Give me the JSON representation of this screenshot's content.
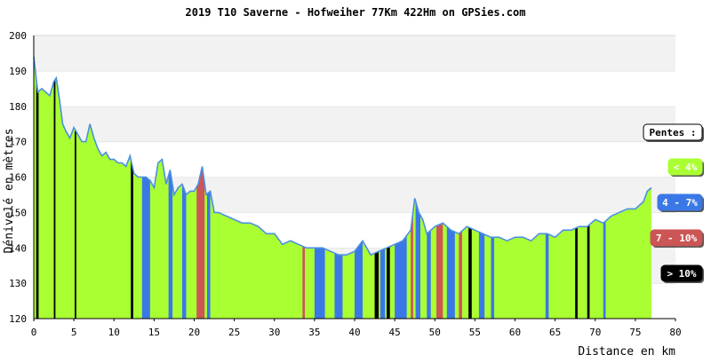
{
  "chart_data": {
    "type": "area",
    "title": "2019 T10 Saverne - Hofweiher 77Km 422Hm on GPSies.com",
    "xlabel": "Distance en km",
    "ylabel": "Dénivelé en mètres",
    "xlim": [
      0,
      80
    ],
    "ylim": [
      120,
      200
    ],
    "x_ticks": [
      "0",
      "5",
      "10",
      "15",
      "20",
      "25",
      "30",
      "35",
      "40",
      "45",
      "50",
      "55",
      "60",
      "65",
      "70",
      "75",
      "80"
    ],
    "y_ticks": [
      "120",
      "130",
      "140",
      "150",
      "160",
      "170",
      "180",
      "190",
      "200"
    ],
    "grid": true,
    "legend_placement": "right",
    "series": [
      {
        "name": "Dénivelé",
        "x": [
          0,
          0.2,
          0.5,
          1,
          1.5,
          2,
          2.5,
          2.8,
          3.2,
          3.6,
          4,
          4.5,
          5,
          5.5,
          6,
          6.5,
          7,
          7.5,
          8,
          8.5,
          9,
          9.5,
          10,
          10.5,
          11,
          11.5,
          12,
          12.5,
          13,
          13.5,
          14,
          14.5,
          15,
          15.5,
          16,
          16.5,
          17,
          17.5,
          18,
          18.5,
          19,
          19.5,
          20,
          20.5,
          21,
          21.5,
          22,
          22.5,
          23,
          24,
          25,
          26,
          27,
          28,
          29,
          30,
          31,
          32,
          33,
          34,
          35,
          36,
          37,
          38,
          39,
          40,
          41,
          42,
          43,
          44,
          45,
          46,
          47,
          47.5,
          48,
          48.5,
          49,
          50,
          51,
          52,
          53,
          54,
          55,
          56,
          57,
          58,
          59,
          60,
          61,
          62,
          63,
          64,
          65,
          66,
          67,
          68,
          69,
          70,
          71,
          72,
          73,
          74,
          75,
          76,
          76.5,
          77
        ],
        "values": [
          194,
          190,
          184,
          185,
          184,
          183,
          187,
          188,
          182,
          175,
          173,
          171,
          174,
          172,
          170,
          170,
          175,
          171,
          168,
          166,
          167,
          165,
          165,
          164,
          164,
          163,
          166,
          161,
          160,
          160,
          160,
          159,
          157,
          164,
          165,
          158,
          162,
          155,
          157,
          158,
          155,
          156,
          156,
          158,
          163,
          155,
          156,
          150,
          150,
          149,
          148,
          147,
          147,
          146,
          144,
          144,
          141,
          142,
          141,
          140,
          140,
          140,
          139,
          138,
          138,
          139,
          142,
          138,
          139,
          140,
          141,
          142,
          145,
          154,
          150,
          148,
          144,
          146,
          147,
          145,
          144,
          146,
          145,
          144,
          143,
          143,
          142,
          143,
          143,
          142,
          144,
          144,
          143,
          145,
          145,
          146,
          146,
          148,
          147,
          149,
          150,
          151,
          151,
          153,
          156,
          157
        ]
      }
    ],
    "legend": {
      "title": "Pentes :",
      "items": [
        {
          "label": "< 4%",
          "color": "#aaff33"
        },
        {
          "label": "4 - 7%",
          "color": "#3b78e7"
        },
        {
          "label": "7 - 10%",
          "color": "#cc5555"
        },
        {
          "label": "> 10%",
          "color": "#000000"
        }
      ]
    },
    "slope_segments": [
      {
        "x": [
          0.3,
          0.6
        ],
        "class": "> 10%"
      },
      {
        "x": [
          2.5,
          2.7
        ],
        "class": "> 10%"
      },
      {
        "x": [
          5.1,
          5.3
        ],
        "class": "> 10%"
      },
      {
        "x": [
          12.1,
          12.4
        ],
        "class": "> 10%"
      },
      {
        "x": [
          13.5,
          14.5
        ],
        "class": "4 - 7%"
      },
      {
        "x": [
          16.8,
          17.3
        ],
        "class": "4 - 7%"
      },
      {
        "x": [
          18.5,
          19
        ],
        "class": "4 - 7%"
      },
      {
        "x": [
          20.3,
          21.3
        ],
        "class": "7 - 10%"
      },
      {
        "x": [
          21.6,
          22
        ],
        "class": "4 - 7%"
      },
      {
        "x": [
          33.5,
          33.8
        ],
        "class": "7 - 10%"
      },
      {
        "x": [
          35,
          36.3
        ],
        "class": "4 - 7%"
      },
      {
        "x": [
          37.5,
          38.5
        ],
        "class": "4 - 7%"
      },
      {
        "x": [
          40,
          41
        ],
        "class": "4 - 7%"
      },
      {
        "x": [
          42.5,
          43
        ],
        "class": "> 10%"
      },
      {
        "x": [
          43.2,
          43.8
        ],
        "class": "4 - 7%"
      },
      {
        "x": [
          44,
          44.4
        ],
        "class": "> 10%"
      },
      {
        "x": [
          45,
          46.5
        ],
        "class": "4 - 7%"
      },
      {
        "x": [
          47,
          47.3
        ],
        "class": "7 - 10%"
      },
      {
        "x": [
          47.6,
          48.2
        ],
        "class": "4 - 7%"
      },
      {
        "x": [
          49,
          49.5
        ],
        "class": "4 - 7%"
      },
      {
        "x": [
          50.2,
          51
        ],
        "class": "7 - 10%"
      },
      {
        "x": [
          51.5,
          52.5
        ],
        "class": "4 - 7%"
      },
      {
        "x": [
          53,
          53.4
        ],
        "class": "7 - 10%"
      },
      {
        "x": [
          54.2,
          54.6
        ],
        "class": "> 10%"
      },
      {
        "x": [
          55.5,
          56.2
        ],
        "class": "4 - 7%"
      },
      {
        "x": [
          57,
          57.4
        ],
        "class": "4 - 7%"
      },
      {
        "x": [
          63.8,
          64.2
        ],
        "class": "4 - 7%"
      },
      {
        "x": [
          67.5,
          67.8
        ],
        "class": "> 10%"
      },
      {
        "x": [
          69,
          69.3
        ],
        "class": "> 10%"
      },
      {
        "x": [
          71,
          71.3
        ],
        "class": "4 - 7%"
      }
    ]
  }
}
